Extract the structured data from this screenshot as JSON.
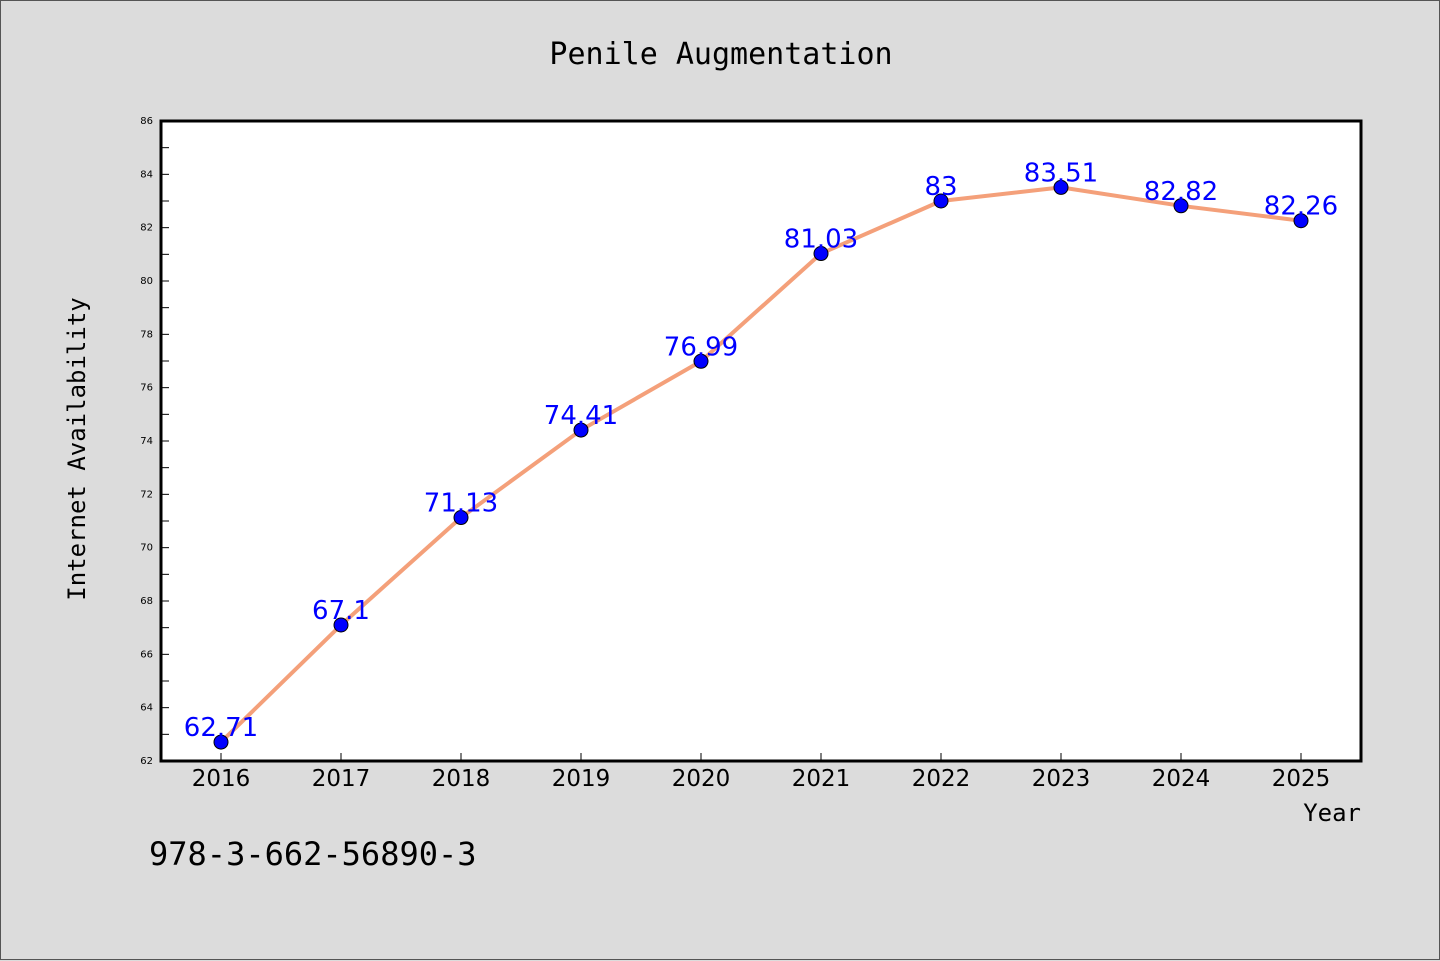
{
  "chart_data": {
    "type": "line",
    "title": "Penile Augmentation",
    "xlabel": "Year",
    "ylabel": "Internet Availability",
    "categories": [
      "2016",
      "2017",
      "2018",
      "2019",
      "2020",
      "2021",
      "2022",
      "2023",
      "2024",
      "2025"
    ],
    "values": [
      62.71,
      67.1,
      71.13,
      74.41,
      76.99,
      81.03,
      83,
      83.51,
      82.82,
      82.26
    ],
    "data_labels": [
      "62.71",
      "67.1",
      "71.13",
      "74.41",
      "76.99",
      "81.03",
      "83",
      "83.51",
      "82.82",
      "82.26"
    ],
    "ylim": [
      62,
      86
    ],
    "yticks": [
      62,
      64,
      66,
      68,
      70,
      72,
      74,
      76,
      78,
      80,
      82,
      84,
      86
    ],
    "grid": false,
    "line_color": "#f4a07a",
    "marker_color": "#0000ff",
    "label_color": "#0000ff"
  },
  "footer_text": "978-3-662-56890-3"
}
